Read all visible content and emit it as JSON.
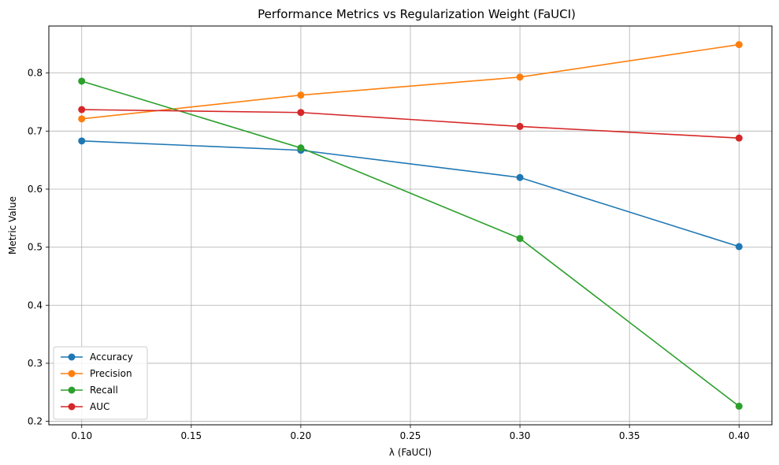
{
  "chart_data": {
    "type": "line",
    "title": "Performance Metrics vs Regularization Weight (FaUCI)",
    "xlabel": "λ (FaUCI)",
    "ylabel": "Metric Value",
    "x": [
      0.1,
      0.2,
      0.3,
      0.4
    ],
    "xlim": [
      0.085,
      0.415
    ],
    "ylim": [
      0.194,
      0.881
    ],
    "xticks": [
      0.1,
      0.15,
      0.2,
      0.25,
      0.3,
      0.35,
      0.4
    ],
    "xtick_labels": [
      "0.10",
      "0.15",
      "0.20",
      "0.25",
      "0.30",
      "0.35",
      "0.40"
    ],
    "yticks": [
      0.2,
      0.3,
      0.4,
      0.5,
      0.6,
      0.7,
      0.8
    ],
    "ytick_labels": [
      "0.2",
      "0.3",
      "0.4",
      "0.5",
      "0.6",
      "0.7",
      "0.8"
    ],
    "grid": true,
    "legend_position": "lower-left",
    "series": [
      {
        "name": "Accuracy",
        "color": "#1f77b4",
        "values": [
          0.683,
          0.667,
          0.62,
          0.501
        ]
      },
      {
        "name": "Precision",
        "color": "#ff7f0e",
        "values": [
          0.721,
          0.762,
          0.793,
          0.849
        ]
      },
      {
        "name": "Recall",
        "color": "#2ca02c",
        "values": [
          0.786,
          0.671,
          0.515,
          0.226
        ]
      },
      {
        "name": "AUC",
        "color": "#d62728",
        "values": [
          0.737,
          0.732,
          0.708,
          0.688
        ]
      }
    ],
    "marker": "circle"
  }
}
